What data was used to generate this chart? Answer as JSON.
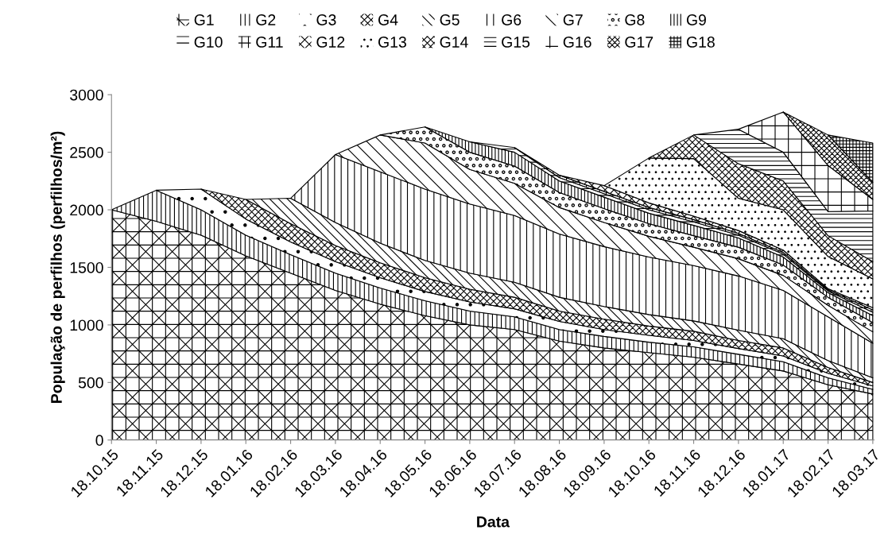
{
  "chart_data": {
    "type": "area",
    "stacked": true,
    "xlabel": "Data",
    "ylabel": "População de perfilhos (perfilhos/m²)",
    "categories": [
      "18.10.15",
      "18.11.15",
      "18.12.15",
      "18.01.16",
      "18.02.16",
      "18.03.16",
      "18.04.16",
      "18.05.16",
      "18.06.16",
      "18.07.16",
      "18.08.16",
      "18.09.16",
      "18.10.16",
      "18.11.16",
      "18.12.16",
      "18.01.17",
      "18.02.17",
      "18.03.17"
    ],
    "ylim": [
      0,
      3000
    ],
    "yticks": [
      0,
      500,
      1000,
      1500,
      2000,
      2500,
      3000
    ],
    "grid": false,
    "legend": "top",
    "series": [
      {
        "name": "G1",
        "color": "#000000",
        "values": [
          2000,
          1900,
          1780,
          1600,
          1450,
          1300,
          1180,
          1080,
          1000,
          960,
          860,
          800,
          760,
          720,
          660,
          600,
          480,
          400
        ]
      },
      {
        "name": "G2",
        "color": "#000000",
        "values": [
          0,
          270,
          220,
          180,
          160,
          150,
          140,
          130,
          120,
          110,
          100,
          100,
          90,
          90,
          85,
          80,
          60,
          40
        ]
      },
      {
        "name": "G3",
        "color": "#000000",
        "values": [
          null,
          0,
          180,
          140,
          110,
          100,
          90,
          80,
          80,
          70,
          70,
          60,
          60,
          55,
          50,
          50,
          40,
          30
        ]
      },
      {
        "name": "G4",
        "color": "#000000",
        "values": [
          null,
          null,
          0,
          170,
          160,
          140,
          130,
          120,
          110,
          100,
          90,
          90,
          80,
          80,
          70,
          70,
          50,
          30
        ]
      },
      {
        "name": "G5",
        "color": "#000000",
        "values": [
          null,
          null,
          null,
          0,
          220,
          200,
          170,
          150,
          140,
          130,
          120,
          110,
          100,
          90,
          90,
          80,
          60,
          40
        ]
      },
      {
        "name": "G6",
        "color": "#000000",
        "values": [
          null,
          null,
          null,
          null,
          0,
          590,
          620,
          620,
          600,
          580,
          550,
          520,
          500,
          480,
          470,
          420,
          380,
          300
        ]
      },
      {
        "name": "G7",
        "color": "#000000",
        "values": [
          null,
          null,
          null,
          null,
          null,
          0,
          320,
          400,
          300,
          280,
          230,
          210,
          180,
          160,
          150,
          130,
          100,
          100
        ]
      },
      {
        "name": "G8",
        "color": "#000000",
        "values": [
          null,
          null,
          null,
          null,
          null,
          null,
          0,
          140,
          150,
          150,
          130,
          120,
          110,
          100,
          100,
          90,
          70,
          80
        ]
      },
      {
        "name": "G9",
        "color": "#000000",
        "values": [
          null,
          null,
          null,
          null,
          null,
          null,
          null,
          0,
          90,
          120,
          100,
          100,
          90,
          90,
          80,
          70,
          40,
          60
        ]
      },
      {
        "name": "G10",
        "color": "#000000",
        "values": [
          null,
          null,
          null,
          null,
          null,
          null,
          null,
          null,
          0,
          40,
          30,
          30,
          30,
          30,
          25,
          25,
          15,
          30
        ]
      },
      {
        "name": "G11",
        "color": "#000000",
        "values": [
          null,
          null,
          null,
          null,
          null,
          null,
          null,
          null,
          null,
          0,
          20,
          20,
          20,
          20,
          15,
          15,
          10,
          20
        ]
      },
      {
        "name": "G12",
        "color": "#000000",
        "values": [
          null,
          null,
          null,
          null,
          null,
          null,
          null,
          null,
          null,
          null,
          0,
          50,
          40,
          30,
          25,
          20,
          10,
          20
        ]
      },
      {
        "name": "G13",
        "color": "#000000",
        "values": [
          null,
          null,
          null,
          null,
          null,
          null,
          null,
          null,
          null,
          null,
          null,
          0,
          390,
          500,
          280,
          350,
          280,
          250
        ]
      },
      {
        "name": "G14",
        "color": "#000000",
        "values": [
          null,
          null,
          null,
          null,
          null,
          null,
          null,
          null,
          null,
          null,
          null,
          null,
          0,
          205,
          300,
          250,
          180,
          150
        ]
      },
      {
        "name": "G15",
        "color": "#000000",
        "values": [
          null,
          null,
          null,
          null,
          null,
          null,
          null,
          null,
          null,
          null,
          null,
          null,
          null,
          0,
          300,
          250,
          210,
          440
        ]
      },
      {
        "name": "G16",
        "color": "#000000",
        "values": [
          null,
          null,
          null,
          null,
          null,
          null,
          null,
          null,
          null,
          null,
          null,
          null,
          null,
          null,
          0,
          350,
          400,
          100
        ]
      },
      {
        "name": "G17",
        "color": "#000000",
        "values": [
          null,
          null,
          null,
          null,
          null,
          null,
          null,
          null,
          null,
          null,
          null,
          null,
          null,
          null,
          null,
          0,
          265,
          150
        ]
      },
      {
        "name": "G18",
        "color": "#000000",
        "values": [
          null,
          null,
          null,
          null,
          null,
          null,
          null,
          null,
          null,
          null,
          null,
          null,
          null,
          null,
          null,
          null,
          0,
          340
        ]
      }
    ]
  }
}
